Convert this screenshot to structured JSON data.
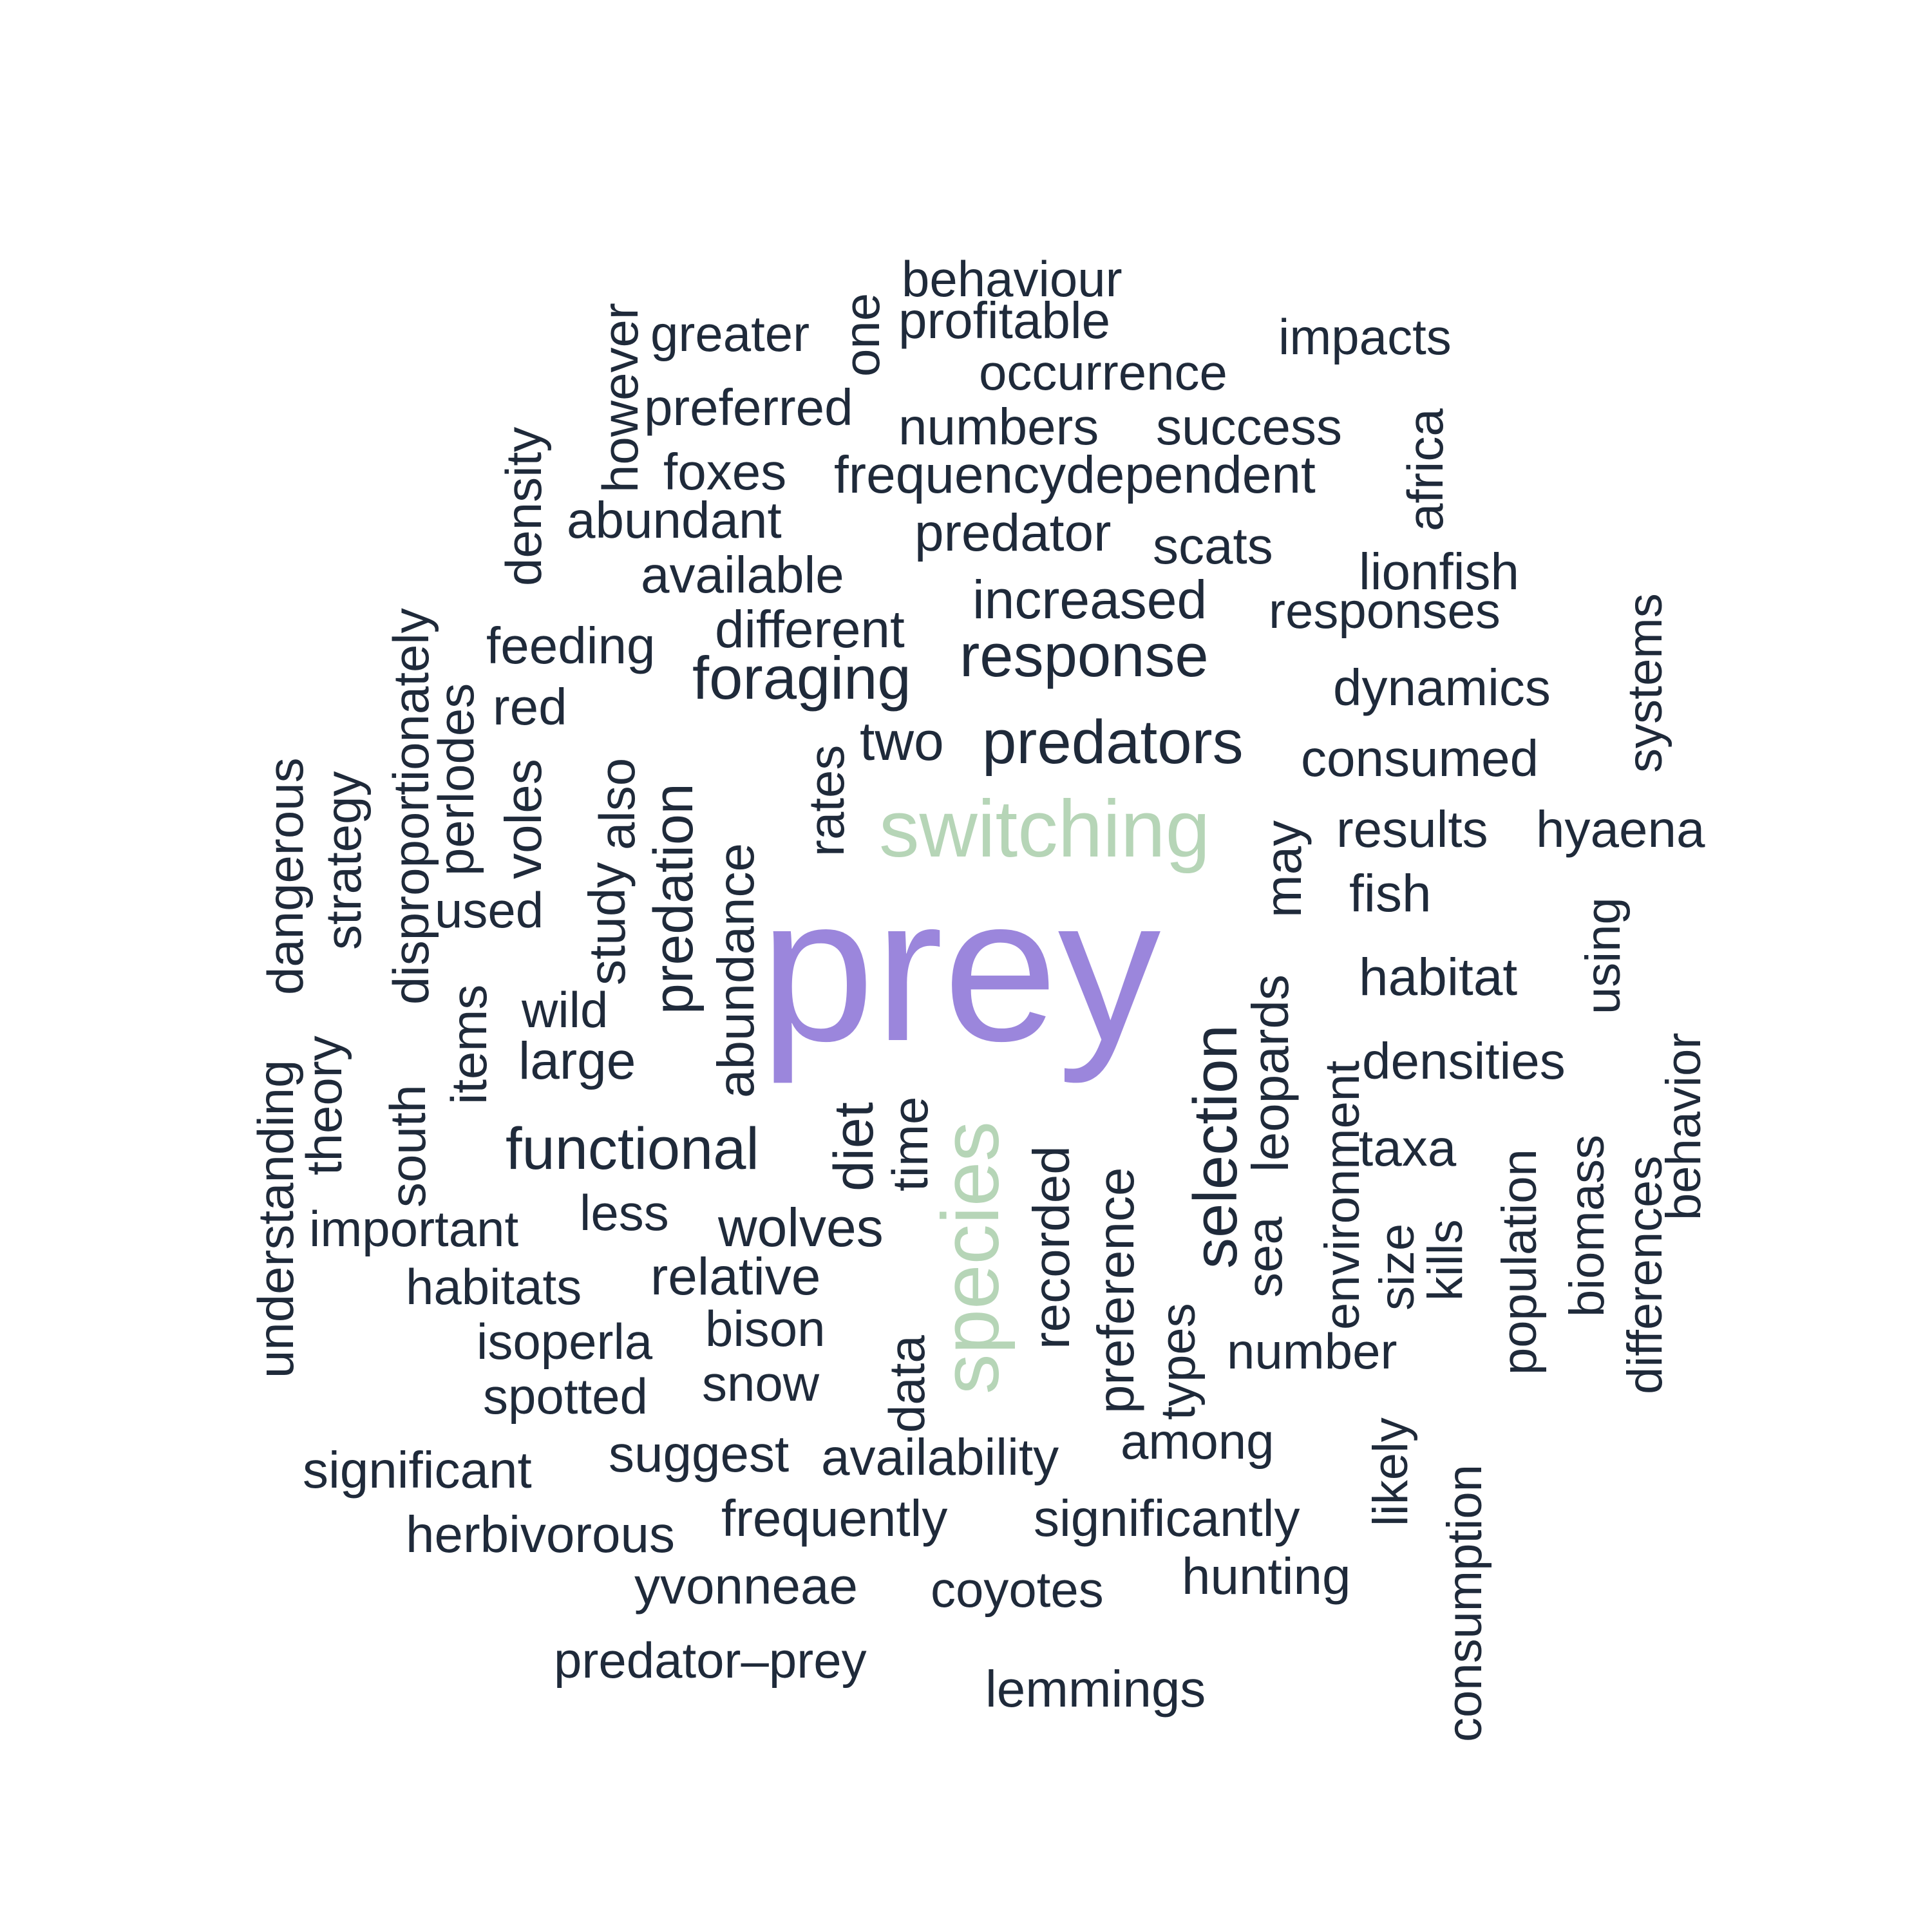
{
  "colors": {
    "primary": "#9b86dc",
    "secondary": "#b6d5b7",
    "default": "#1f2a3a"
  },
  "words": [
    {
      "text": "prey",
      "role": "primary"
    },
    {
      "text": "switching",
      "role": "secondary"
    },
    {
      "text": "species",
      "role": "secondary"
    },
    {
      "text": "predators"
    },
    {
      "text": "selection"
    },
    {
      "text": "response"
    },
    {
      "text": "foraging"
    },
    {
      "text": "functional"
    },
    {
      "text": "predation"
    },
    {
      "text": "diet"
    },
    {
      "text": "abundance"
    },
    {
      "text": "increased"
    },
    {
      "text": "frequencydependent"
    },
    {
      "text": "different"
    },
    {
      "text": "predator"
    },
    {
      "text": "two"
    },
    {
      "text": "habitat"
    },
    {
      "text": "study"
    },
    {
      "text": "also"
    },
    {
      "text": "leopards"
    },
    {
      "text": "wolves"
    },
    {
      "text": "large"
    },
    {
      "text": "relative"
    },
    {
      "text": "recorded"
    },
    {
      "text": "preference"
    },
    {
      "text": "densities"
    },
    {
      "text": "taxa"
    },
    {
      "text": "may"
    },
    {
      "text": "fish"
    },
    {
      "text": "results"
    },
    {
      "text": "hyaena"
    },
    {
      "text": "consumed"
    },
    {
      "text": "dynamics"
    },
    {
      "text": "responses"
    },
    {
      "text": "lionfish"
    },
    {
      "text": "scats"
    },
    {
      "text": "success"
    },
    {
      "text": "numbers"
    },
    {
      "text": "occurrence"
    },
    {
      "text": "profitable"
    },
    {
      "text": "behaviour"
    },
    {
      "text": "impacts"
    },
    {
      "text": "greater"
    },
    {
      "text": "one"
    },
    {
      "text": "however"
    },
    {
      "text": "preferred"
    },
    {
      "text": "foxes"
    },
    {
      "text": "abundant"
    },
    {
      "text": "available"
    },
    {
      "text": "feeding"
    },
    {
      "text": "red"
    },
    {
      "text": "rates"
    },
    {
      "text": "density"
    },
    {
      "text": "africa"
    },
    {
      "text": "systems"
    },
    {
      "text": "disproportionately"
    },
    {
      "text": "perlodes"
    },
    {
      "text": "voles"
    },
    {
      "text": "used"
    },
    {
      "text": "dangerous"
    },
    {
      "text": "strategy"
    },
    {
      "text": "wild"
    },
    {
      "text": "items"
    },
    {
      "text": "understanding"
    },
    {
      "text": "theory"
    },
    {
      "text": "south"
    },
    {
      "text": "important"
    },
    {
      "text": "habitats"
    },
    {
      "text": "less"
    },
    {
      "text": "isoperla"
    },
    {
      "text": "bison"
    },
    {
      "text": "snow"
    },
    {
      "text": "spotted"
    },
    {
      "text": "data"
    },
    {
      "text": "time"
    },
    {
      "text": "types"
    },
    {
      "text": "among"
    },
    {
      "text": "sea"
    },
    {
      "text": "number"
    },
    {
      "text": "environment"
    },
    {
      "text": "size"
    },
    {
      "text": "kills"
    },
    {
      "text": "population"
    },
    {
      "text": "biomass"
    },
    {
      "text": "differences"
    },
    {
      "text": "behavior"
    },
    {
      "text": "using"
    },
    {
      "text": "likely"
    },
    {
      "text": "consumption"
    },
    {
      "text": "significant"
    },
    {
      "text": "suggest"
    },
    {
      "text": "availability"
    },
    {
      "text": "herbivorous"
    },
    {
      "text": "frequently"
    },
    {
      "text": "significantly"
    },
    {
      "text": "yvonneae"
    },
    {
      "text": "coyotes"
    },
    {
      "text": "hunting"
    },
    {
      "text": "predator–prey"
    },
    {
      "text": "lemmings"
    }
  ]
}
